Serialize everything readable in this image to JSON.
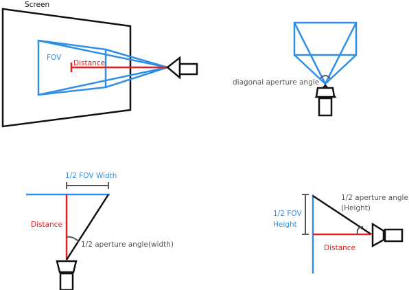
{
  "colors": {
    "blue": "#2f8fe6",
    "red": "#e02020",
    "black": "#111111",
    "gray": "#555555"
  },
  "panel_top_left": {
    "screen_label": "Screen",
    "fov_label": "FOV",
    "distance_label": "Distance"
  },
  "panel_top_right": {
    "angle_label": "diagonal aperture angle"
  },
  "panel_bottom_left": {
    "fov_width_label": "1/2 FOV Width",
    "distance_label": "Distance",
    "angle_label": "1/2 aperture angle(width)"
  },
  "panel_bottom_right": {
    "fov_height_line1": "1/2 FOV",
    "fov_height_line2": "Height",
    "angle_line1": "1/2 aperture angle",
    "angle_line2": "(Height)",
    "distance_label": "Distance"
  }
}
